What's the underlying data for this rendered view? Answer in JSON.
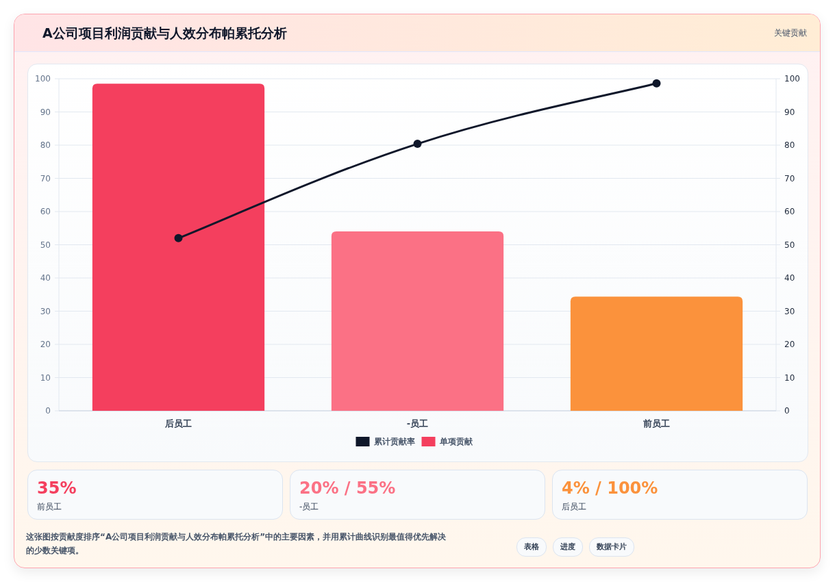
{
  "chart_data": {
    "type": "bar",
    "title": "A公司项目利润贡献与人效分布帕累托分析",
    "subtitle": "关键贡献",
    "categories": [
      "后员工",
      "-员工",
      "前员工"
    ],
    "series": [
      {
        "name": "单项贡献",
        "color": "#f43f5e",
        "colors": [
          "#f43f5e",
          "#fb7185",
          "#fb923c"
        ],
        "values": [
          98.5,
          54,
          34.4
        ]
      },
      {
        "name": "累计贡献率",
        "type": "line",
        "axis": "y2",
        "color": "#0f172a",
        "values": [
          52,
          80.4,
          98.6
        ]
      }
    ],
    "ylim": [
      0,
      100
    ],
    "yticks": [
      0,
      10,
      20,
      30,
      40,
      50,
      60,
      70,
      80,
      90,
      100
    ],
    "y2lim": [
      0,
      100
    ],
    "y2ticks": [
      0,
      10,
      20,
      30,
      40,
      50,
      60,
      70,
      80,
      90,
      100
    ],
    "grid": "y",
    "legend": "bottom",
    "marker": "circle",
    "annotations": [
      "35%",
      "前员工",
      "20% / 55%",
      "-员工",
      "4% / 100%",
      "后员工",
      "这张图按贡献度排序“A公司项目利润贡献与人效分布帕累托分析”中的主要因素，并用累计曲线识别最值得优先解决的少数关键项。",
      "表格",
      "进度",
      "数据卡片"
    ]
  }
}
